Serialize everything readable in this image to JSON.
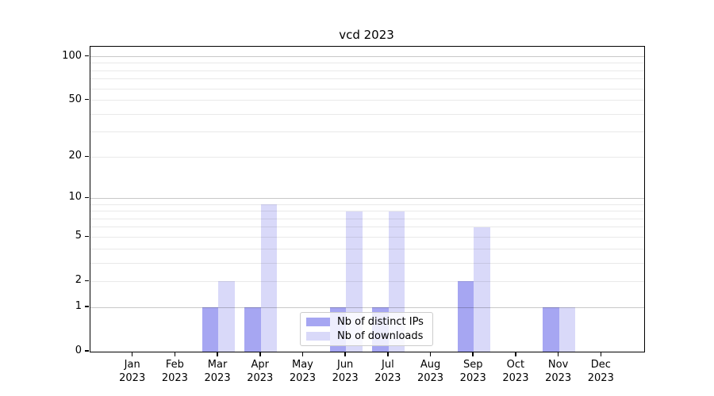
{
  "chart_data": {
    "type": "bar",
    "title": "vcd 2023",
    "categories": [
      "Jan",
      "Feb",
      "Mar",
      "Apr",
      "May",
      "Jun",
      "Jul",
      "Aug",
      "Sep",
      "Oct",
      "Nov",
      "Dec"
    ],
    "category_year": "2023",
    "series": [
      {
        "name": "Nb of distinct IPs",
        "color": "#a6a6f2",
        "values": [
          0,
          0,
          1,
          1,
          0,
          1,
          1,
          0,
          2,
          0,
          1,
          0
        ]
      },
      {
        "name": "Nb of downloads",
        "color": "#d9d9f9",
        "values": [
          0,
          0,
          2,
          9,
          0,
          8,
          8,
          0,
          6,
          0,
          1,
          0
        ]
      }
    ],
    "xlabel": "",
    "ylabel": "",
    "y_scale": "log1p",
    "ylim": [
      0,
      117
    ],
    "y_ticks": [
      0,
      1,
      2,
      5,
      10,
      20,
      50,
      100
    ],
    "y_major_gridlines": [
      1,
      10,
      100
    ],
    "y_minor_gridlines": [
      2,
      3,
      4,
      5,
      6,
      7,
      8,
      9,
      20,
      30,
      40,
      50,
      60,
      70,
      80,
      90
    ],
    "grid": true,
    "legend_position": "lower-center"
  }
}
